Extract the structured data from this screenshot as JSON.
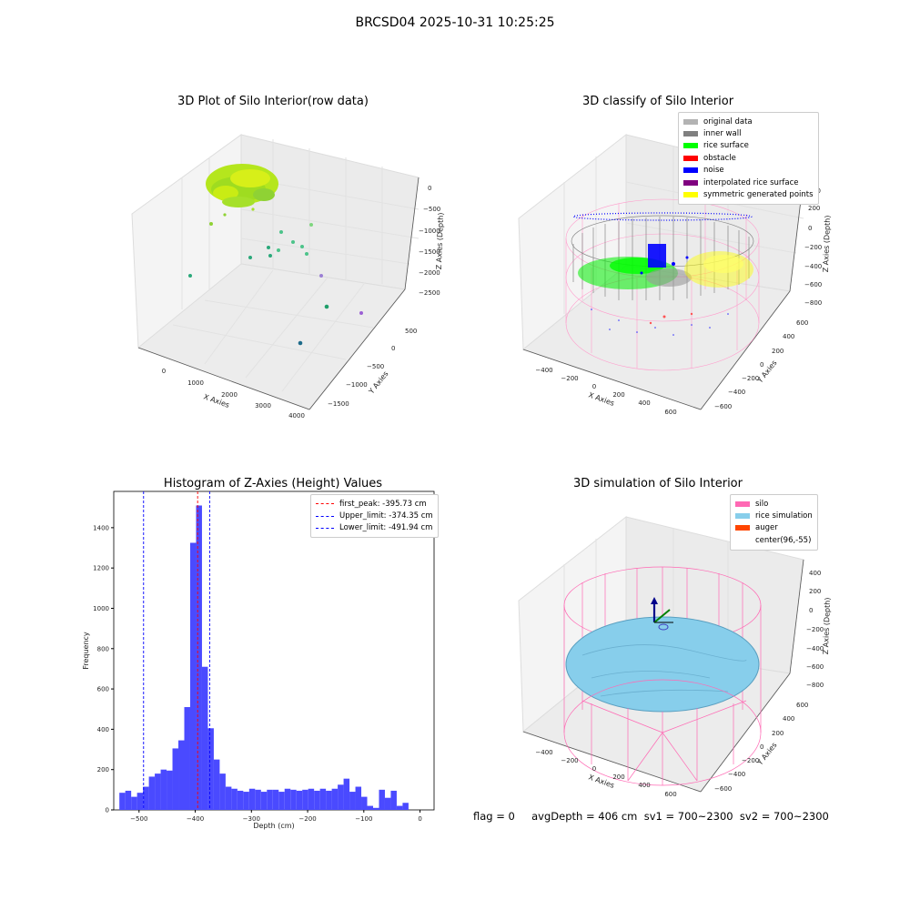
{
  "suptitle": "BRCSD04 2025-10-31 10:25:25",
  "status_line": "flag = 0     avgDepth = 406 cm  sv1 = 700~2300  sv2 = 700~2300",
  "chart_data": [
    {
      "type": "scatter",
      "title": "3D Plot of Silo Interior(row data)",
      "xlabel": "X Axies",
      "ylabel": "Y Axies",
      "zlabel": "Z Axies (Depth)",
      "x_ticks": [
        "0",
        "1000",
        "2000",
        "3000",
        "4000"
      ],
      "y_ticks": [
        "500",
        "0",
        "−500",
        "−1000",
        "−1500"
      ],
      "z_ticks": [
        "0",
        "−500",
        "−1000",
        "−1500",
        "−2000",
        "−2500"
      ],
      "colors": {
        "cluster": "#b5e61d",
        "low": "#2aa87a",
        "deep": "#1e6b8a",
        "far": "#9b7fd4"
      }
    },
    {
      "type": "scatter",
      "title": "3D classify of Silo Interior",
      "xlabel": "X Axies",
      "ylabel": "Y Axies",
      "zlabel": "Z Axies (Depth)",
      "x_ticks": [
        "−400",
        "−200",
        "0",
        "200",
        "400",
        "600"
      ],
      "y_ticks": [
        "600",
        "400",
        "200",
        "0",
        "−200",
        "−400",
        "−600"
      ],
      "z_ticks": [
        "200",
        "0",
        "−200",
        "−400",
        "−600",
        "−800"
      ],
      "z_top_tick": "00",
      "legend": [
        {
          "label": "original data",
          "color": "#b3b3b3"
        },
        {
          "label": "inner wall",
          "color": "#808080"
        },
        {
          "label": "rice surface",
          "color": "#00ff00"
        },
        {
          "label": "obstacle",
          "color": "#ff0000"
        },
        {
          "label": "noise",
          "color": "#0000ff"
        },
        {
          "label": "interpolated rice surface",
          "color": "#800080"
        },
        {
          "label": "symmetric generated points",
          "color": "#ffff00"
        }
      ]
    },
    {
      "type": "bar",
      "title": "Histogram of Z-Axies (Height) Values",
      "xlabel": "Depth (cm)",
      "ylabel": "Frequency",
      "xlim": [
        -545,
        25
      ],
      "ylim": [
        0,
        1580
      ],
      "x_ticks": [
        -500,
        -400,
        -300,
        -200,
        -100,
        0
      ],
      "x_tick_labels": [
        "−500",
        "−400",
        "−300",
        "−200",
        "−100",
        "0"
      ],
      "y_ticks": [
        0,
        200,
        400,
        600,
        800,
        1000,
        1200,
        1400
      ],
      "bar_color": "#4a4aff",
      "bin_width": 10.5,
      "bin_start": -535,
      "values": [
        85,
        95,
        65,
        85,
        115,
        165,
        180,
        200,
        195,
        305,
        345,
        510,
        1325,
        1510,
        710,
        405,
        250,
        180,
        115,
        105,
        95,
        90,
        105,
        100,
        90,
        100,
        100,
        90,
        105,
        100,
        95,
        100,
        105,
        95,
        105,
        95,
        105,
        125,
        155,
        90,
        115,
        65,
        20,
        10,
        100,
        60,
        95,
        20,
        35
      ],
      "vlines": [
        {
          "x": -395.73,
          "color": "#ff0000",
          "label": "first_peak: -395.73 cm"
        },
        {
          "x": -374.35,
          "color": "#0000ff",
          "label": "Upper_limit: -374.35 cm"
        },
        {
          "x": -491.94,
          "color": "#0000ff",
          "label": "Lower_limit: -491.94 cm"
        }
      ],
      "legend_position": "top-right"
    },
    {
      "type": "scatter",
      "title": "3D simulation of Silo Interior",
      "xlabel": "X Axies",
      "ylabel": "Y Axies",
      "zlabel": "Z Axies (Depth)",
      "x_ticks": [
        "−400",
        "−200",
        "0",
        "200",
        "400",
        "600"
      ],
      "y_ticks": [
        "600",
        "400",
        "200",
        "0",
        "−200",
        "−400",
        "−600"
      ],
      "z_ticks": [
        "400",
        "200",
        "0",
        "−200",
        "−400",
        "−600",
        "−800"
      ],
      "legend": [
        {
          "label": "silo",
          "color": "#ff69b4"
        },
        {
          "label": "rice simulation",
          "color": "#87ceeb"
        },
        {
          "label": "auger",
          "color": "#ff4500"
        },
        {
          "label": "center(96,-55)",
          "color": ""
        }
      ]
    }
  ]
}
